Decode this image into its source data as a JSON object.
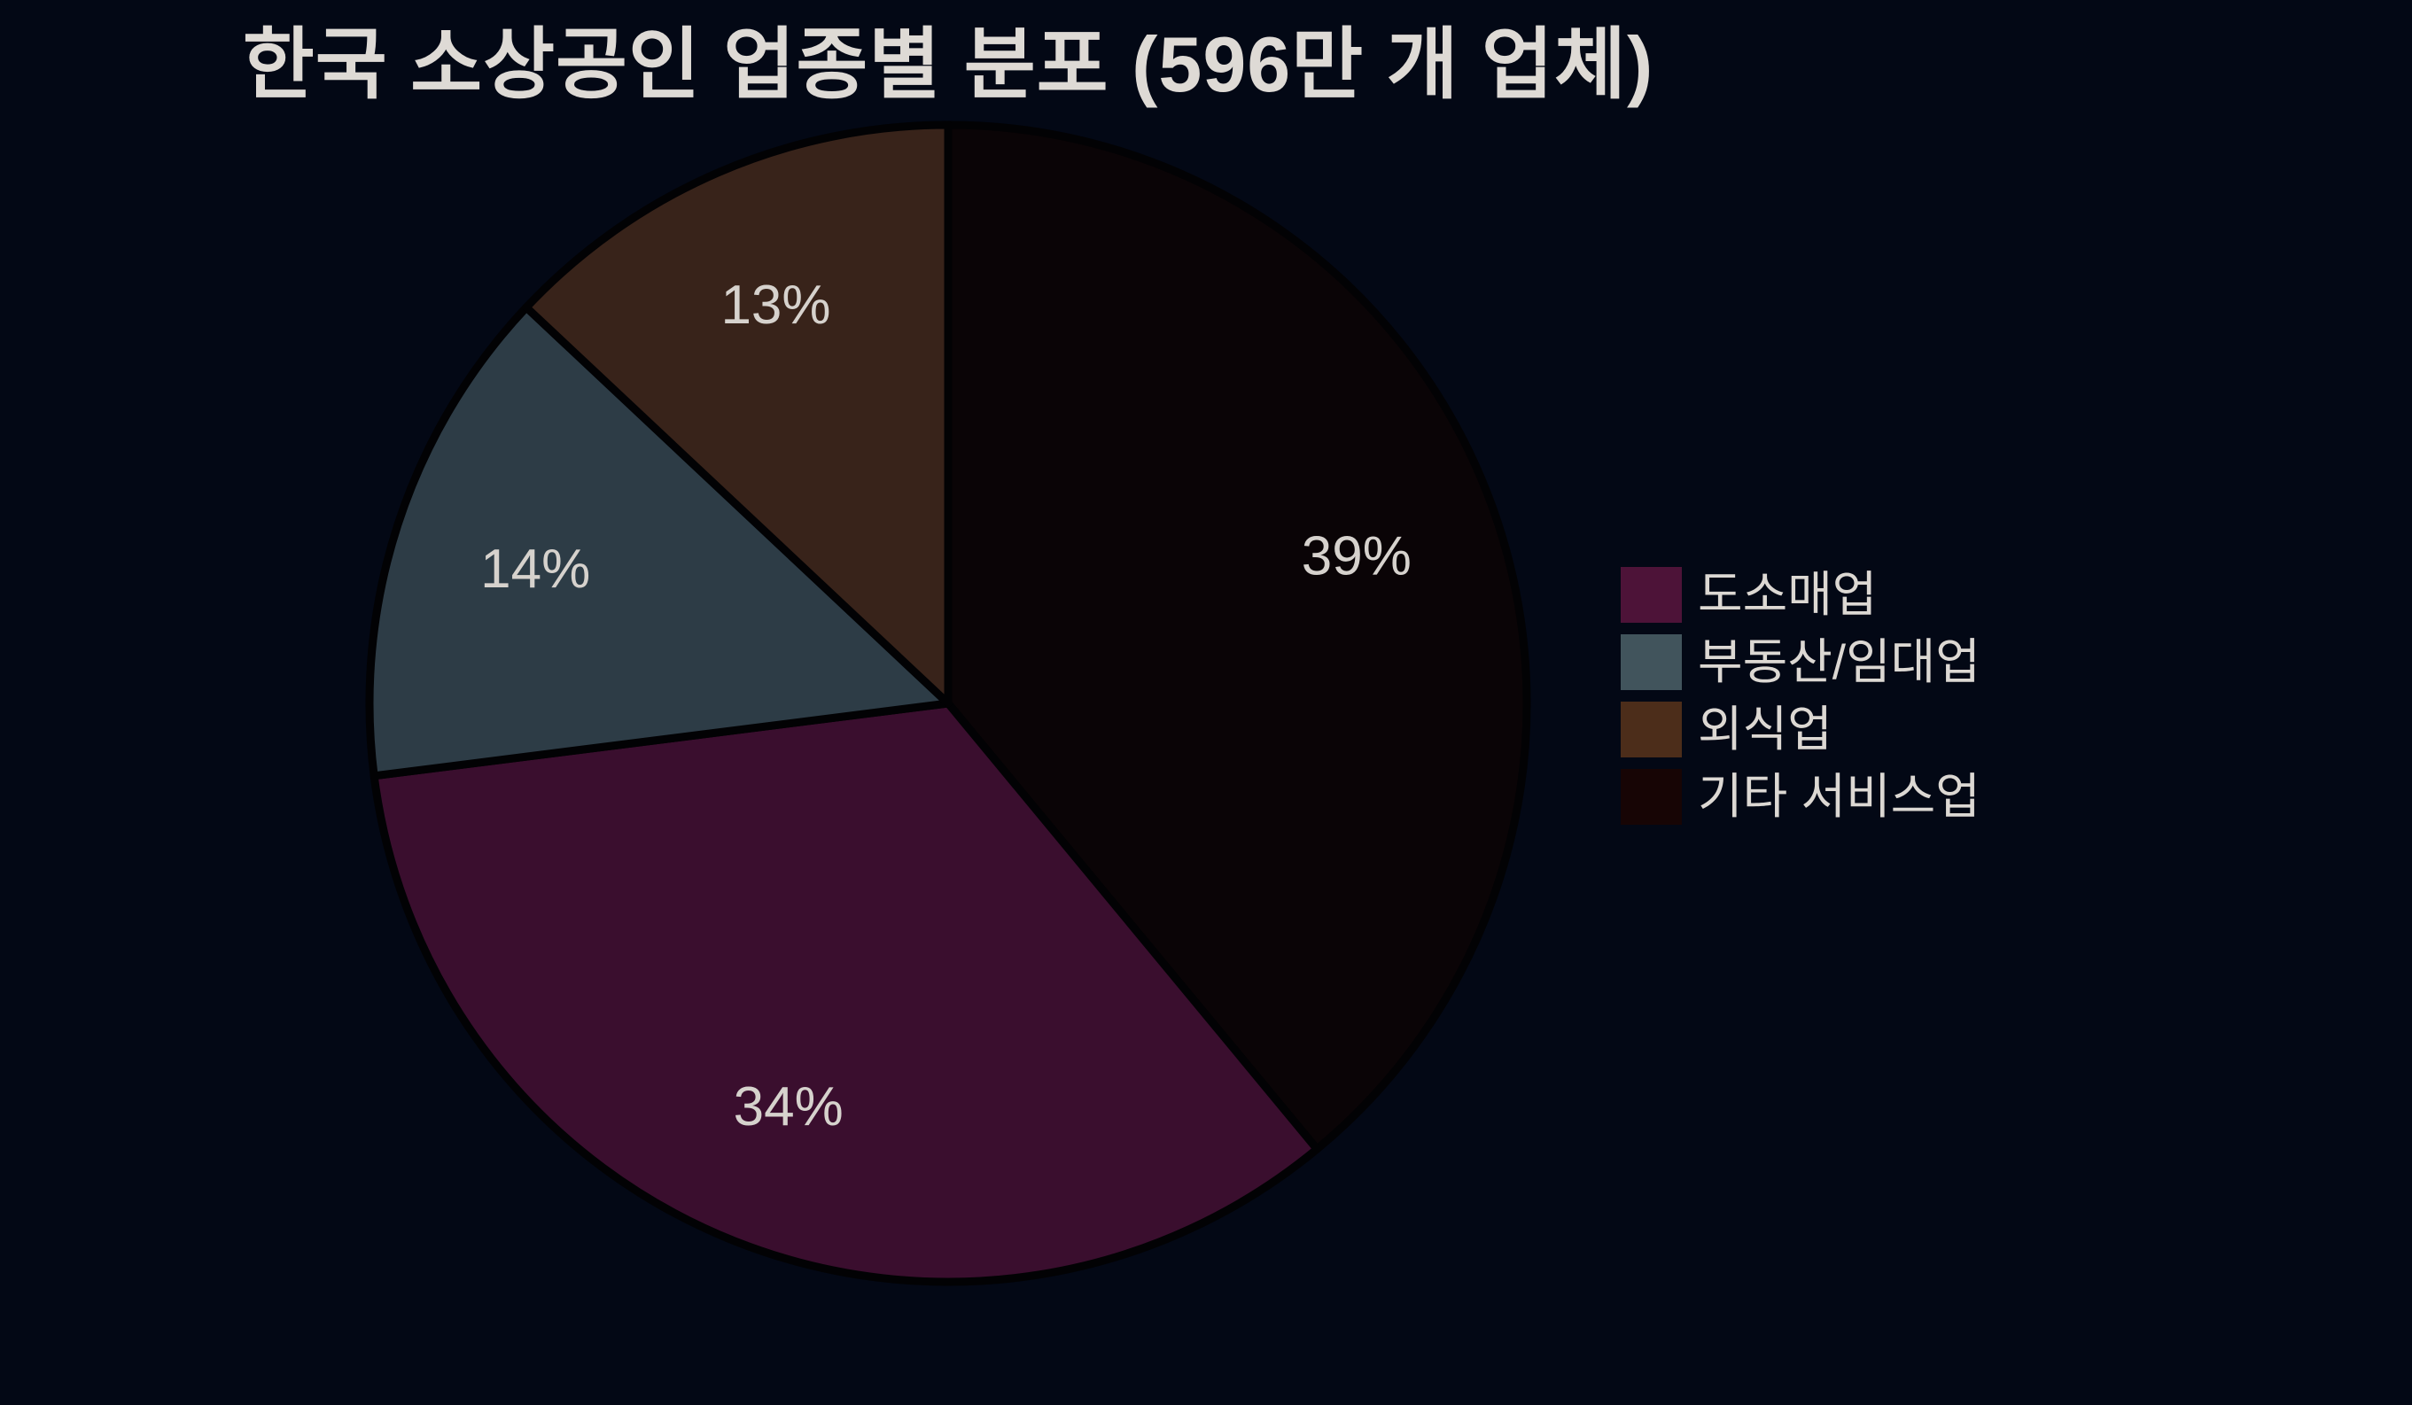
{
  "title": "한국 소상공인 업종별 분포 (596만 개 업체)",
  "background_color": "#030815",
  "title_color": "#dedad5",
  "chart_data": {
    "type": "pie",
    "title": "한국 소상공인 업종별 분포 (596만 개 업체)",
    "total_label": "596만 개 업체",
    "start_angle_clockwise_from_top": 0,
    "direction": "clockwise",
    "label_distance": 0.75,
    "radius_px": 653,
    "edge_color": "#020204",
    "edge_width": 9,
    "slices": [
      {
        "label": "기타 서비스업",
        "value": 39,
        "pct_label": "39%",
        "pie_color": "#0a0406",
        "legend_color": "#170505"
      },
      {
        "label": "도소매업",
        "value": 34,
        "pct_label": "34%",
        "pie_color": "#3a0e2e",
        "legend_color": "#4d1338"
      },
      {
        "label": "부동산/임대업",
        "value": 14,
        "pct_label": "14%",
        "pie_color": "#2d3c46",
        "legend_color": "#41545c"
      },
      {
        "label": "외식업",
        "value": 13,
        "pct_label": "13%",
        "pie_color": "#38231a",
        "legend_color": "#4c2d1a"
      }
    ],
    "legend_position": "center-right",
    "grid": false
  },
  "legend": {
    "items": [
      {
        "label": "도소매업",
        "color": "#4d1338"
      },
      {
        "label": "부동산/임대업",
        "color": "#41545c"
      },
      {
        "label": "외식업",
        "color": "#4c2d1a"
      },
      {
        "label": "기타 서비스업",
        "color": "#170505"
      }
    ]
  }
}
